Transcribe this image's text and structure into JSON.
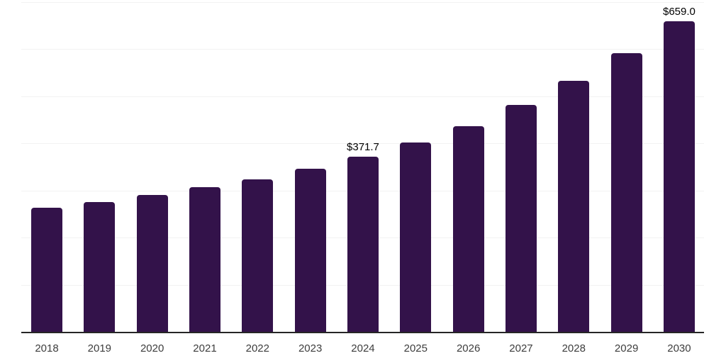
{
  "chart_data": {
    "type": "bar",
    "title": "",
    "xlabel": "",
    "ylabel": "",
    "categories": [
      "2018",
      "2019",
      "2020",
      "2021",
      "2022",
      "2023",
      "2024",
      "2025",
      "2026",
      "2027",
      "2028",
      "2029",
      "2030"
    ],
    "values": [
      263.9,
      275.8,
      290.8,
      307.3,
      323.8,
      346.3,
      371.7,
      402.5,
      437.0,
      481.2,
      532.9,
      592.1,
      659.0
    ],
    "labeled_points": [
      {
        "category": "2024",
        "label": "$371.7"
      },
      {
        "category": "2030",
        "label": "$659.0"
      }
    ],
    "ylim": [
      0,
      700
    ],
    "gridline_interval": 100,
    "grid": "horizontal",
    "legend": "none",
    "y_axis_ticks_visible": false,
    "colors": {
      "bar": "#33124A",
      "gridline": "#F2F2F2",
      "axis_line": "#262626",
      "tick_label": "#3D3D3D",
      "data_label": "#000000",
      "background": "#FFFFFF"
    }
  }
}
